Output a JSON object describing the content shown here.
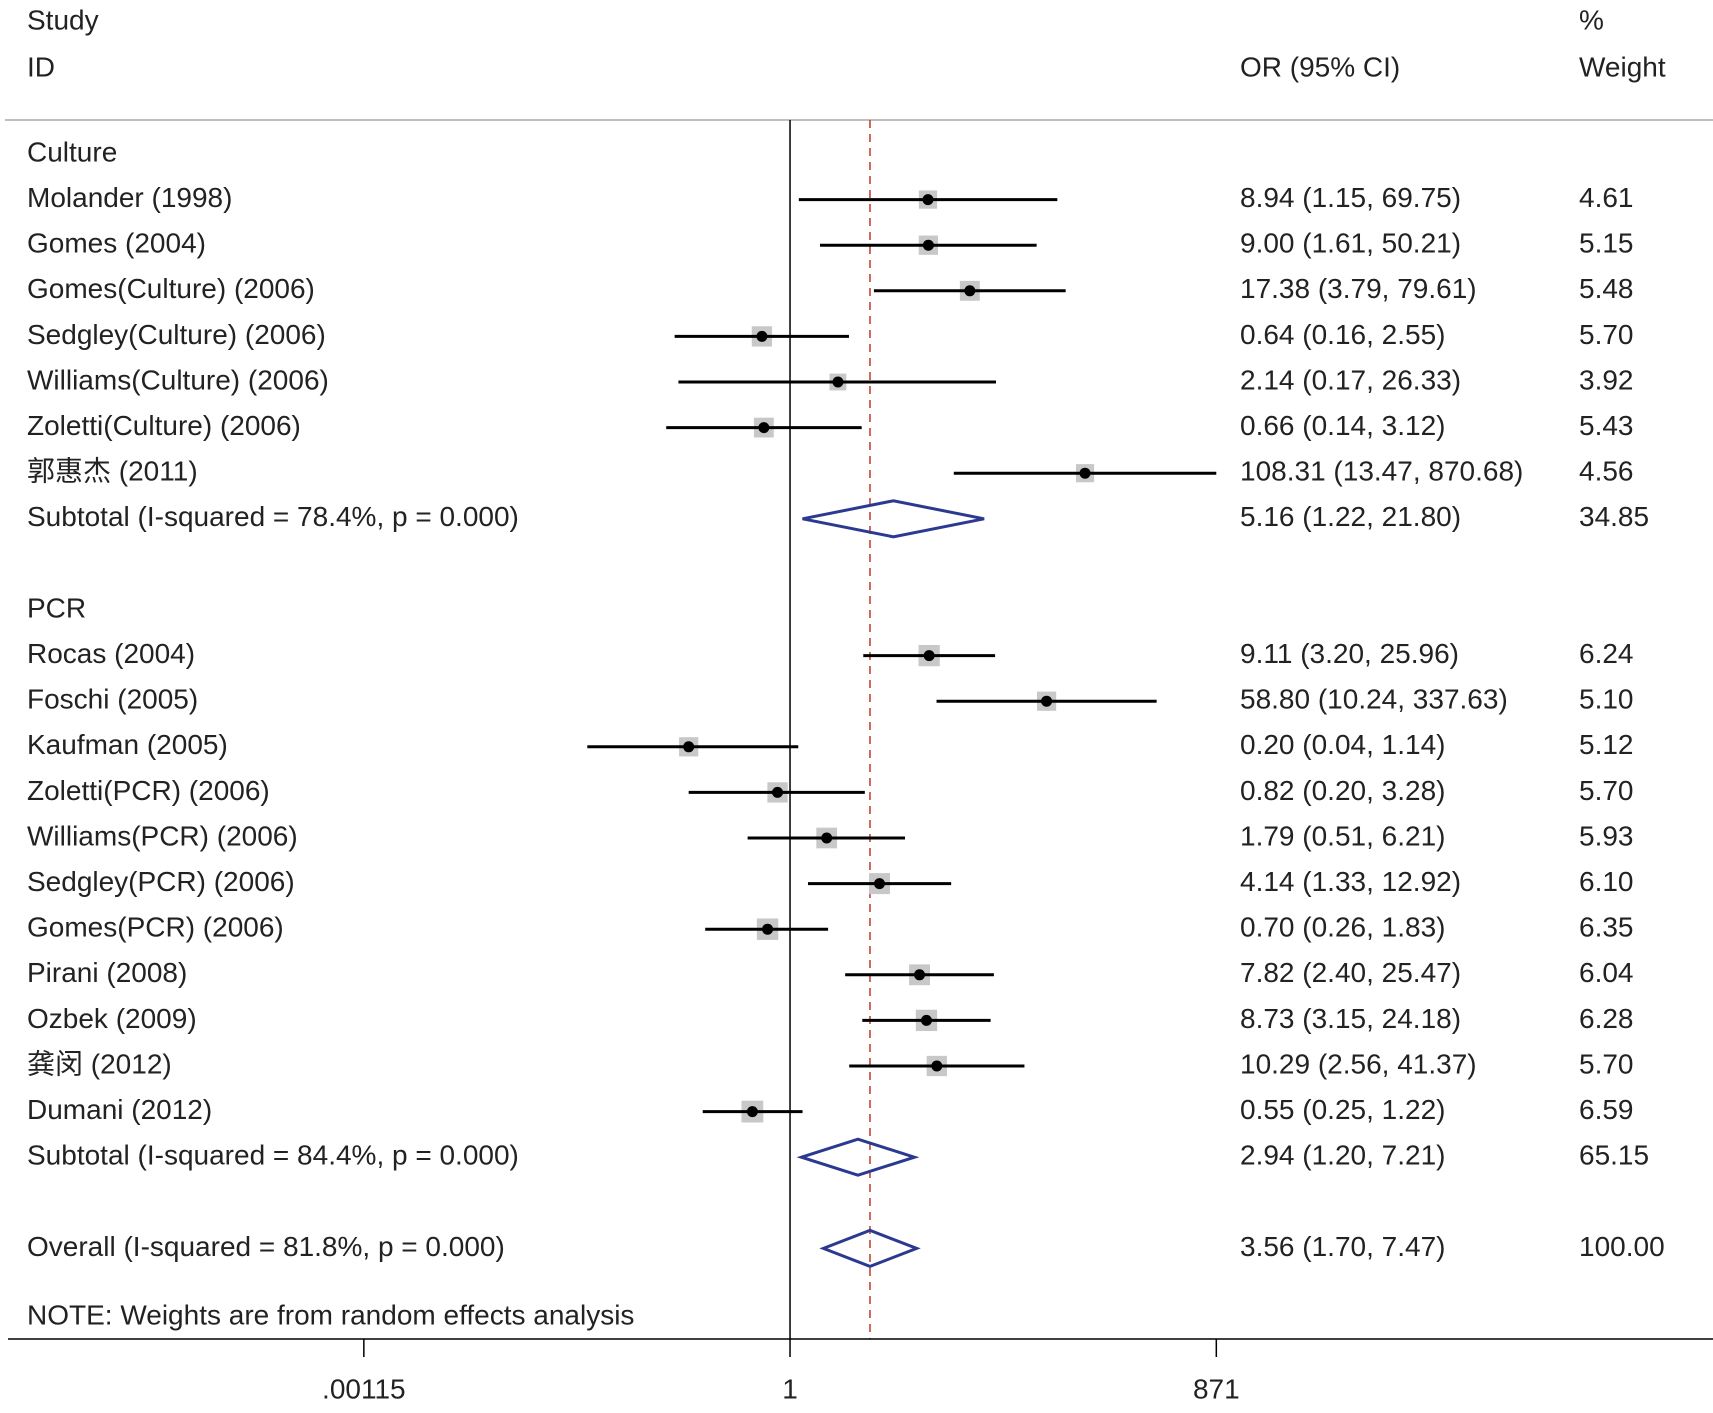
{
  "chart_data": {
    "type": "forest",
    "header": {
      "study": "Study",
      "id": "ID",
      "effect": "OR (95% CI)",
      "weight_pct": "%",
      "weight": "Weight"
    },
    "groups": [
      {
        "name": "Culture",
        "studies": [
          {
            "study": "Molander (1998)",
            "or": 8.94,
            "lower": 1.15,
            "upper": 69.75,
            "ci_label": "8.94 (1.15, 69.75)",
            "weight": 4.61,
            "weight_label": "4.61"
          },
          {
            "study": "Gomes (2004)",
            "or": 9.0,
            "lower": 1.61,
            "upper": 50.21,
            "ci_label": "9.00 (1.61, 50.21)",
            "weight": 5.15,
            "weight_label": "5.15"
          },
          {
            "study": "Gomes(Culture) (2006)",
            "or": 17.38,
            "lower": 3.79,
            "upper": 79.61,
            "ci_label": "17.38 (3.79, 79.61)",
            "weight": 5.48,
            "weight_label": "5.48"
          },
          {
            "study": "Sedgley(Culture) (2006)",
            "or": 0.64,
            "lower": 0.16,
            "upper": 2.55,
            "ci_label": "0.64 (0.16, 2.55)",
            "weight": 5.7,
            "weight_label": "5.70"
          },
          {
            "study": "Williams(Culture) (2006)",
            "or": 2.14,
            "lower": 0.17,
            "upper": 26.33,
            "ci_label": "2.14 (0.17, 26.33)",
            "weight": 3.92,
            "weight_label": "3.92"
          },
          {
            "study": "Zoletti(Culture) (2006)",
            "or": 0.66,
            "lower": 0.14,
            "upper": 3.12,
            "ci_label": "0.66 (0.14, 3.12)",
            "weight": 5.43,
            "weight_label": "5.43"
          },
          {
            "study": "郭惠杰 (2011)",
            "or": 108.31,
            "lower": 13.47,
            "upper": 870.68,
            "ci_label": "108.31 (13.47, 870.68)",
            "weight": 4.56,
            "weight_label": "4.56"
          }
        ],
        "subtotal": {
          "label": "Subtotal  (I-squared = 78.4%, p = 0.000)",
          "or": 5.16,
          "lower": 1.22,
          "upper": 21.8,
          "ci_label": "5.16 (1.22, 21.80)",
          "weight": 34.85,
          "weight_label": "34.85"
        }
      },
      {
        "name": "PCR",
        "studies": [
          {
            "study": "Rocas (2004)",
            "or": 9.11,
            "lower": 3.2,
            "upper": 25.96,
            "ci_label": "9.11 (3.20, 25.96)",
            "weight": 6.24,
            "weight_label": "6.24"
          },
          {
            "study": "Foschi (2005)",
            "or": 58.8,
            "lower": 10.24,
            "upper": 337.63,
            "ci_label": "58.80 (10.24, 337.63)",
            "weight": 5.1,
            "weight_label": "5.10"
          },
          {
            "study": "Kaufman (2005)",
            "or": 0.2,
            "lower": 0.04,
            "upper": 1.14,
            "ci_label": "0.20 (0.04, 1.14)",
            "weight": 5.12,
            "weight_label": "5.12"
          },
          {
            "study": "Zoletti(PCR) (2006)",
            "or": 0.82,
            "lower": 0.2,
            "upper": 3.28,
            "ci_label": "0.82 (0.20, 3.28)",
            "weight": 5.7,
            "weight_label": "5.70"
          },
          {
            "study": "Williams(PCR) (2006)",
            "or": 1.79,
            "lower": 0.51,
            "upper": 6.21,
            "ci_label": "1.79 (0.51, 6.21)",
            "weight": 5.93,
            "weight_label": "5.93"
          },
          {
            "study": "Sedgley(PCR) (2006)",
            "or": 4.14,
            "lower": 1.33,
            "upper": 12.92,
            "ci_label": "4.14 (1.33, 12.92)",
            "weight": 6.1,
            "weight_label": "6.10"
          },
          {
            "study": "Gomes(PCR) (2006)",
            "or": 0.7,
            "lower": 0.26,
            "upper": 1.83,
            "ci_label": "0.70 (0.26, 1.83)",
            "weight": 6.35,
            "weight_label": "6.35"
          },
          {
            "study": "Pirani (2008)",
            "or": 7.82,
            "lower": 2.4,
            "upper": 25.47,
            "ci_label": "7.82 (2.40, 25.47)",
            "weight": 6.04,
            "weight_label": "6.04"
          },
          {
            "study": "Ozbek (2009)",
            "or": 8.73,
            "lower": 3.15,
            "upper": 24.18,
            "ci_label": "8.73 (3.15, 24.18)",
            "weight": 6.28,
            "weight_label": "6.28"
          },
          {
            "study": "龚闵 (2012)",
            "or": 10.29,
            "lower": 2.56,
            "upper": 41.37,
            "ci_label": "10.29 (2.56, 41.37)",
            "weight": 5.7,
            "weight_label": "5.70"
          },
          {
            "study": "Dumani (2012)",
            "or": 0.55,
            "lower": 0.25,
            "upper": 1.22,
            "ci_label": "0.55 (0.25, 1.22)",
            "weight": 6.59,
            "weight_label": "6.59"
          }
        ],
        "subtotal": {
          "label": "Subtotal  (I-squared = 84.4%, p = 0.000)",
          "or": 2.94,
          "lower": 1.2,
          "upper": 7.21,
          "ci_label": "2.94 (1.20, 7.21)",
          "weight": 65.15,
          "weight_label": "65.15"
        }
      }
    ],
    "overall": {
      "label": "Overall  (I-squared = 81.8%, p = 0.000)",
      "or": 3.56,
      "lower": 1.7,
      "upper": 7.47,
      "ci_label": "3.56 (1.70, 7.47)",
      "weight": 100.0,
      "weight_label": "100.00"
    },
    "note": "NOTE: Weights are from random effects analysis",
    "xscale": "log",
    "xlim": [
      3.56e-06,
      2320000
    ],
    "xticks": [
      {
        "value": 0.00115,
        "label": ".00115"
      },
      1,
      871
    ],
    "colors": {
      "ci": "#000000",
      "box": "#c8c8c8",
      "diamond": "#2b3990",
      "overall_line": "#c0392b"
    }
  }
}
